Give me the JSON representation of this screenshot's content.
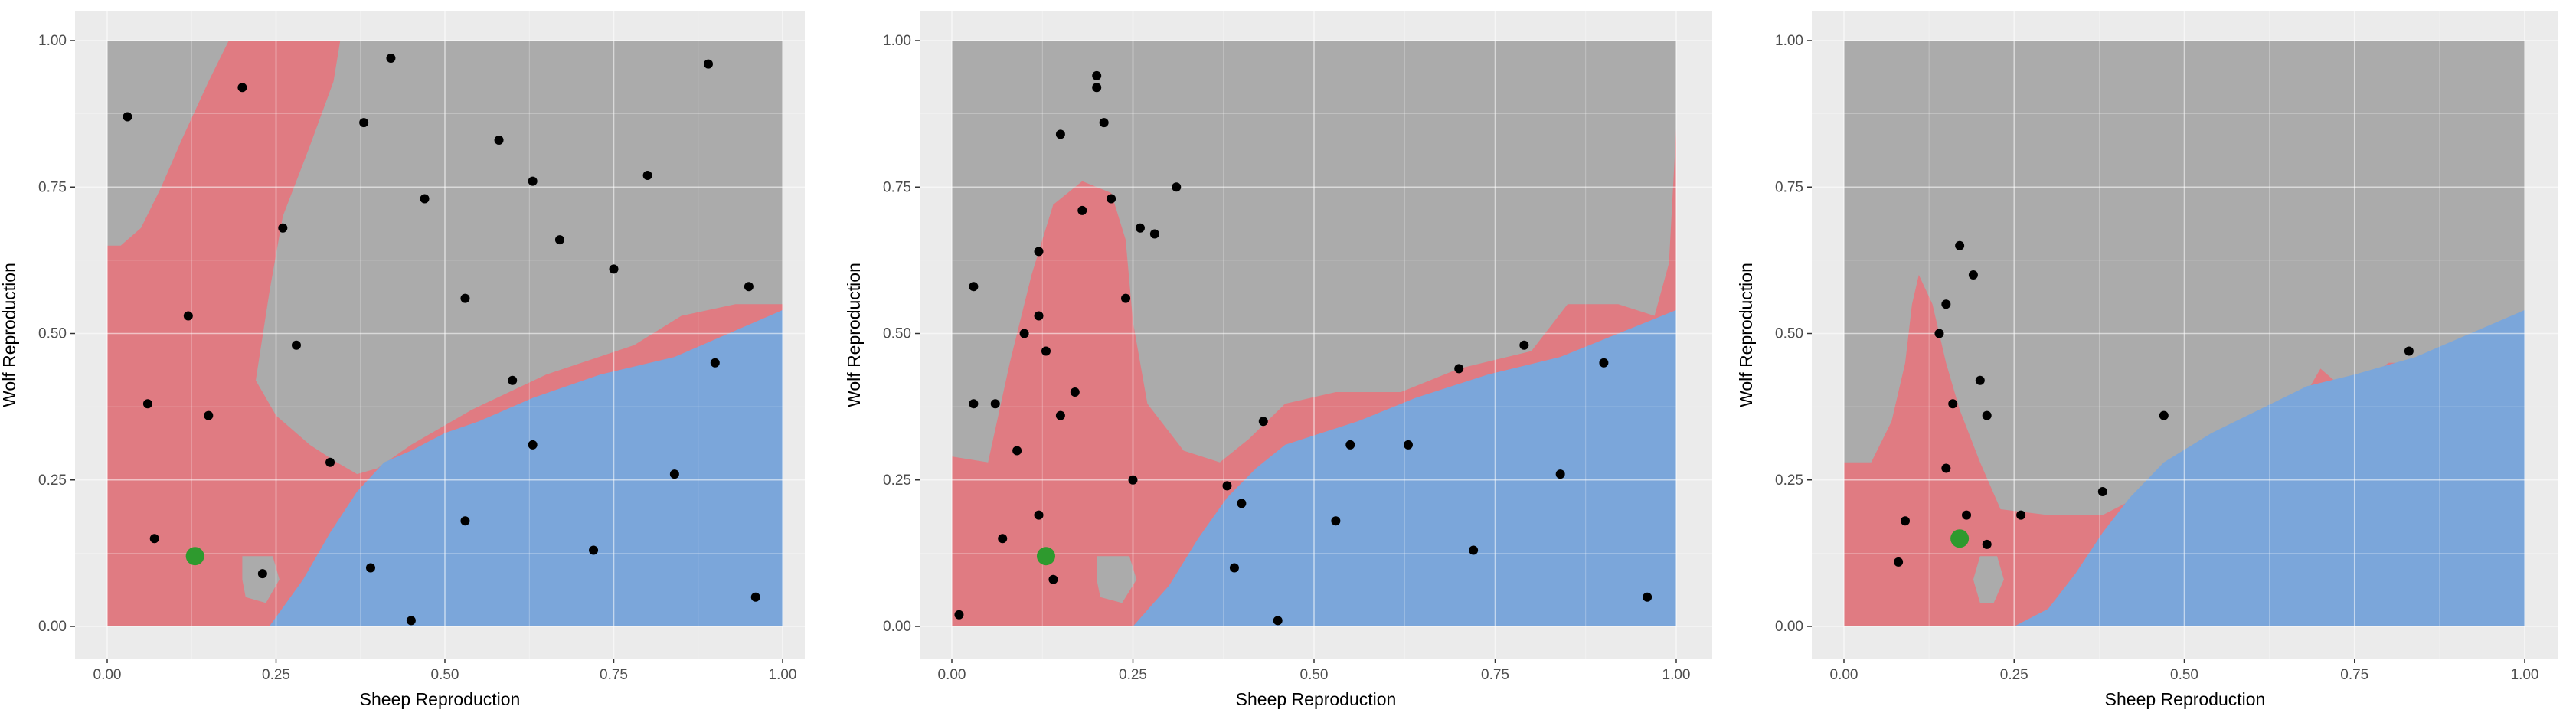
{
  "colors": {
    "panel_bg": "#ebebeb",
    "grid_major": "#ffffff",
    "region_gray": "#ababab",
    "region_red": "#e07b82",
    "region_blue": "#7ba6da",
    "point": "#000000",
    "highlight": "#2e9a2e"
  },
  "chart_data": [
    {
      "type": "scatter",
      "title": "",
      "xlabel": "Sheep Reproduction",
      "ylabel": "Wolf Reproduction",
      "xlim": [
        0,
        1
      ],
      "ylim": [
        0,
        1
      ],
      "x_ticks": [
        "0.00",
        "0.25",
        "0.50",
        "0.75",
        "1.00"
      ],
      "y_ticks": [
        "0.00",
        "0.25",
        "0.50",
        "0.75",
        "1.00"
      ],
      "grid": true,
      "background_regions": [
        "gray",
        "red",
        "blue"
      ],
      "highlight_point": {
        "x": 0.13,
        "y": 0.12
      },
      "points": [
        {
          "x": 0.03,
          "y": 0.87
        },
        {
          "x": 0.2,
          "y": 0.92
        },
        {
          "x": 0.42,
          "y": 0.97
        },
        {
          "x": 0.38,
          "y": 0.86
        },
        {
          "x": 0.89,
          "y": 0.96
        },
        {
          "x": 0.58,
          "y": 0.83
        },
        {
          "x": 0.63,
          "y": 0.76
        },
        {
          "x": 0.8,
          "y": 0.77
        },
        {
          "x": 0.47,
          "y": 0.73
        },
        {
          "x": 0.26,
          "y": 0.68
        },
        {
          "x": 0.67,
          "y": 0.66
        },
        {
          "x": 0.75,
          "y": 0.61
        },
        {
          "x": 0.95,
          "y": 0.58
        },
        {
          "x": 0.53,
          "y": 0.56
        },
        {
          "x": 0.12,
          "y": 0.53
        },
        {
          "x": 0.28,
          "y": 0.48
        },
        {
          "x": 0.9,
          "y": 0.45
        },
        {
          "x": 0.6,
          "y": 0.42
        },
        {
          "x": 0.06,
          "y": 0.38
        },
        {
          "x": 0.15,
          "y": 0.36
        },
        {
          "x": 0.63,
          "y": 0.31
        },
        {
          "x": 0.33,
          "y": 0.28
        },
        {
          "x": 0.84,
          "y": 0.26
        },
        {
          "x": 0.53,
          "y": 0.18
        },
        {
          "x": 0.07,
          "y": 0.15
        },
        {
          "x": 0.72,
          "y": 0.13
        },
        {
          "x": 0.39,
          "y": 0.1
        },
        {
          "x": 0.23,
          "y": 0.09
        },
        {
          "x": 0.96,
          "y": 0.05
        },
        {
          "x": 0.45,
          "y": 0.01
        }
      ]
    },
    {
      "type": "scatter",
      "title": "",
      "xlabel": "Sheep Reproduction",
      "ylabel": "Wolf Reproduction",
      "xlim": [
        0,
        1
      ],
      "ylim": [
        0,
        1
      ],
      "x_ticks": [
        "0.00",
        "0.25",
        "0.50",
        "0.75",
        "1.00"
      ],
      "y_ticks": [
        "0.00",
        "0.25",
        "0.50",
        "0.75",
        "1.00"
      ],
      "grid": true,
      "background_regions": [
        "gray",
        "red",
        "blue"
      ],
      "highlight_point": {
        "x": 0.13,
        "y": 0.12
      },
      "points": [
        {
          "x": 0.2,
          "y": 0.94
        },
        {
          "x": 0.2,
          "y": 0.92
        },
        {
          "x": 0.21,
          "y": 0.86
        },
        {
          "x": 0.15,
          "y": 0.84
        },
        {
          "x": 0.31,
          "y": 0.75
        },
        {
          "x": 0.22,
          "y": 0.73
        },
        {
          "x": 0.18,
          "y": 0.71
        },
        {
          "x": 0.26,
          "y": 0.68
        },
        {
          "x": 0.28,
          "y": 0.67
        },
        {
          "x": 0.12,
          "y": 0.64
        },
        {
          "x": 0.03,
          "y": 0.58
        },
        {
          "x": 0.24,
          "y": 0.56
        },
        {
          "x": 0.12,
          "y": 0.53
        },
        {
          "x": 0.1,
          "y": 0.5
        },
        {
          "x": 0.13,
          "y": 0.47
        },
        {
          "x": 0.7,
          "y": 0.44
        },
        {
          "x": 0.79,
          "y": 0.48
        },
        {
          "x": 0.9,
          "y": 0.45
        },
        {
          "x": 0.17,
          "y": 0.4
        },
        {
          "x": 0.03,
          "y": 0.38
        },
        {
          "x": 0.06,
          "y": 0.38
        },
        {
          "x": 0.15,
          "y": 0.36
        },
        {
          "x": 0.43,
          "y": 0.35
        },
        {
          "x": 0.55,
          "y": 0.31
        },
        {
          "x": 0.63,
          "y": 0.31
        },
        {
          "x": 0.09,
          "y": 0.3
        },
        {
          "x": 0.84,
          "y": 0.26
        },
        {
          "x": 0.25,
          "y": 0.25
        },
        {
          "x": 0.38,
          "y": 0.24
        },
        {
          "x": 0.4,
          "y": 0.21
        },
        {
          "x": 0.12,
          "y": 0.19
        },
        {
          "x": 0.53,
          "y": 0.18
        },
        {
          "x": 0.07,
          "y": 0.15
        },
        {
          "x": 0.72,
          "y": 0.13
        },
        {
          "x": 0.39,
          "y": 0.1
        },
        {
          "x": 0.14,
          "y": 0.08
        },
        {
          "x": 0.96,
          "y": 0.05
        },
        {
          "x": 0.01,
          "y": 0.02
        },
        {
          "x": 0.45,
          "y": 0.01
        }
      ]
    },
    {
      "type": "scatter",
      "title": "",
      "xlabel": "Sheep Reproduction",
      "ylabel": "Wolf Reproduction",
      "xlim": [
        0,
        1
      ],
      "ylim": [
        0,
        1
      ],
      "x_ticks": [
        "0.00",
        "0.25",
        "0.50",
        "0.75",
        "1.00"
      ],
      "y_ticks": [
        "0.00",
        "0.25",
        "0.50",
        "0.75",
        "1.00"
      ],
      "grid": true,
      "background_regions": [
        "gray",
        "red",
        "blue"
      ],
      "highlight_point": {
        "x": 0.17,
        "y": 0.15
      },
      "points": [
        {
          "x": 0.17,
          "y": 0.65
        },
        {
          "x": 0.19,
          "y": 0.6
        },
        {
          "x": 0.15,
          "y": 0.55
        },
        {
          "x": 0.14,
          "y": 0.5
        },
        {
          "x": 0.2,
          "y": 0.42
        },
        {
          "x": 0.16,
          "y": 0.38
        },
        {
          "x": 0.21,
          "y": 0.36
        },
        {
          "x": 0.15,
          "y": 0.27
        },
        {
          "x": 0.47,
          "y": 0.36
        },
        {
          "x": 0.83,
          "y": 0.47
        },
        {
          "x": 0.38,
          "y": 0.23
        },
        {
          "x": 0.26,
          "y": 0.19
        },
        {
          "x": 0.18,
          "y": 0.19
        },
        {
          "x": 0.09,
          "y": 0.18
        },
        {
          "x": 0.21,
          "y": 0.14
        },
        {
          "x": 0.08,
          "y": 0.11
        }
      ]
    }
  ]
}
